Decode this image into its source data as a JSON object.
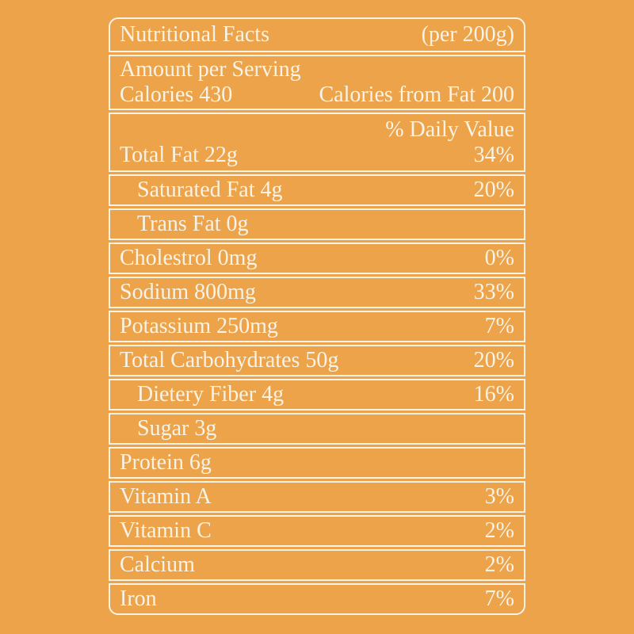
{
  "colors": {
    "background": "#ECA34A",
    "foreground": "#F8F3E6"
  },
  "label": {
    "title": "Nutritional Facts",
    "serving_note": "(per 200g)",
    "amount_heading": "Amount per Serving",
    "calories": "Calories 430",
    "calories_from_fat": "Calories from Fat 200",
    "daily_value_heading": "% Daily Value",
    "rows": [
      {
        "name": "Total Fat 22g",
        "percent": "34%",
        "indent": false
      },
      {
        "name": "Saturated Fat 4g",
        "percent": "20%",
        "indent": true
      },
      {
        "name": "Trans Fat 0g",
        "percent": "",
        "indent": true
      },
      {
        "name": "Cholestrol 0mg",
        "percent": "0%",
        "indent": false
      },
      {
        "name": "Sodium 800mg",
        "percent": "33%",
        "indent": false
      },
      {
        "name": "Potassium 250mg",
        "percent": "7%",
        "indent": false
      },
      {
        "name": "Total Carbohydrates 50g",
        "percent": "20%",
        "indent": false
      },
      {
        "name": "Dietery Fiber 4g",
        "percent": "16%",
        "indent": true
      },
      {
        "name": "Sugar 3g",
        "percent": "",
        "indent": true
      },
      {
        "name": "Protein 6g",
        "percent": "",
        "indent": false
      },
      {
        "name": "Vitamin A",
        "percent": "3%",
        "indent": false
      },
      {
        "name": "Vitamin C",
        "percent": "2%",
        "indent": false
      },
      {
        "name": "Calcium",
        "percent": "2%",
        "indent": false
      },
      {
        "name": "Iron",
        "percent": "7%",
        "indent": false
      }
    ]
  }
}
